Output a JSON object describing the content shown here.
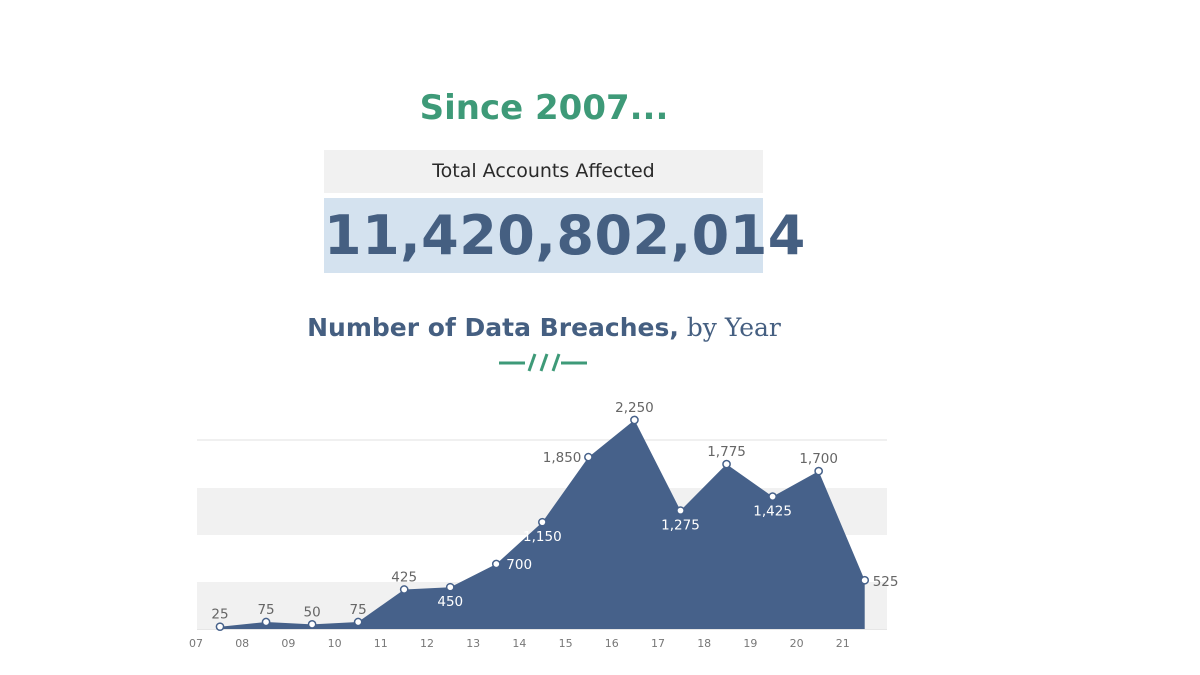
{
  "headline": "Since 2007...",
  "total": {
    "label": "Total Accounts Affected",
    "value": "11,420,802,014"
  },
  "chart_title": {
    "main": "Number of Data Breaches,",
    "suffix": "by Year"
  },
  "colors": {
    "accent": "#3e9a78",
    "navy": "#455f81",
    "area": "#46618a",
    "band": "#f1f1f1"
  },
  "icons": {
    "divider": "dash-slash-divider-icon"
  },
  "chart_data": {
    "type": "area",
    "x": [
      "07",
      "08",
      "09",
      "10",
      "11",
      "12",
      "13",
      "14",
      "15",
      "16",
      "17",
      "18",
      "19",
      "20",
      "21"
    ],
    "series": [
      {
        "values": [
          25,
          75,
          50,
          75,
          425,
          450,
          700,
          1150,
          1850,
          2250,
          1275,
          1775,
          1425,
          1700,
          525
        ],
        "labels": [
          "25",
          "75",
          "50",
          "75",
          "425",
          "450",
          "700",
          "1,150",
          "1,850",
          "2,250",
          "1,275",
          "1,775",
          "1,425",
          "1,700",
          "525"
        ]
      }
    ],
    "ylim": [
      0,
      2250
    ],
    "grid": true
  }
}
